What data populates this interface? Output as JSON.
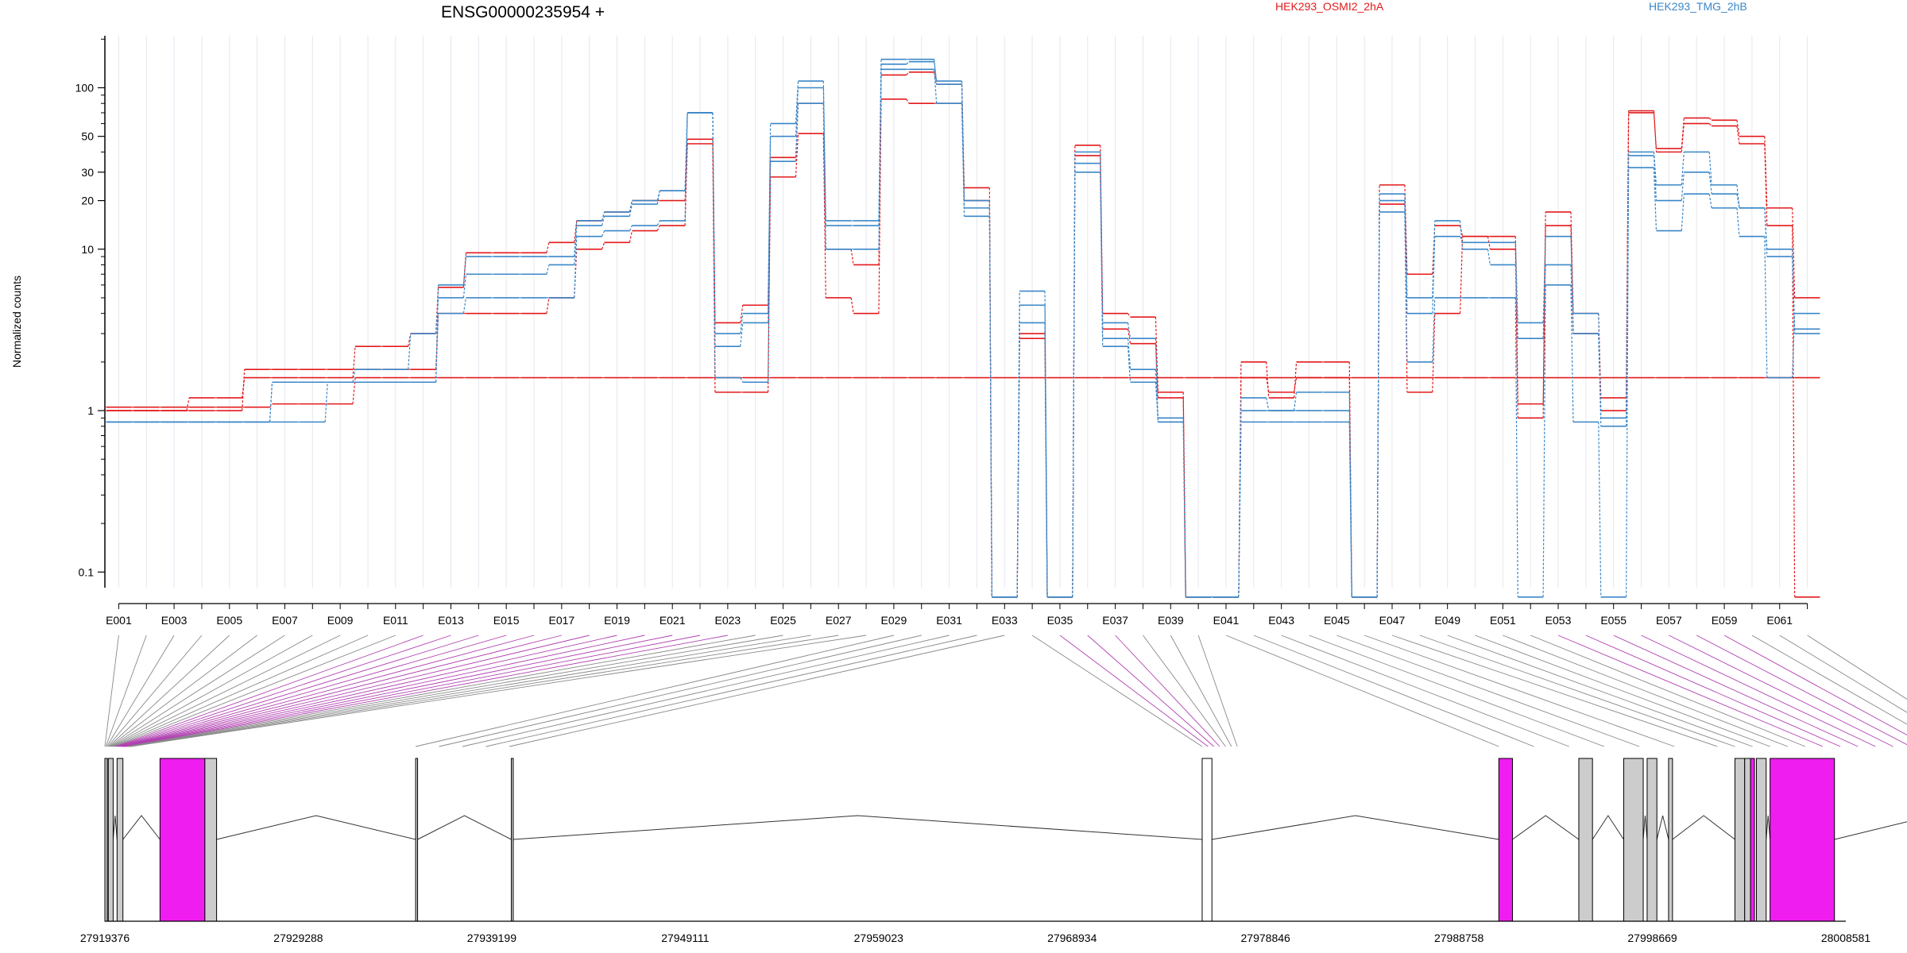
{
  "chart_data": {
    "type": "line",
    "title": "ENSG00000235954 +",
    "ylabel": "Normalized counts",
    "y_scale": "log",
    "ylim": [
      0.08,
      210
    ],
    "y_ticks": [
      0.1,
      1,
      10,
      20,
      30,
      50,
      100
    ],
    "y_tick_labels": [
      "0.1",
      "1",
      "10",
      "20",
      "30",
      "50",
      "100"
    ],
    "grid": "vertical, light",
    "legend_placement": "top-right",
    "exon_count": 62,
    "exon_labels": [
      "E001",
      "E003",
      "E005",
      "E007",
      "E009",
      "E011",
      "E013",
      "E015",
      "E017",
      "E019",
      "E021",
      "E023",
      "E025",
      "E027",
      "E029",
      "E031",
      "E033",
      "E035",
      "E037",
      "E039",
      "E041",
      "E043",
      "E045",
      "E047",
      "E049",
      "E051",
      "E053",
      "E055",
      "E057",
      "E059",
      "E061"
    ],
    "genomic_coords": [
      "27919376",
      "27929288",
      "27939199",
      "27949111",
      "27959023",
      "27968934",
      "27978846",
      "27988758",
      "27998669",
      "28008581"
    ],
    "colors": {
      "osmi": "#e31a1c",
      "tmg": "#3a87c8",
      "highlight": "#f01df0",
      "exon_gray": "#cccccc",
      "connector": "#888888"
    },
    "series": [
      {
        "name": "HEK293_OSMI2_2hA",
        "color": "#e31a1c",
        "values": [
          1.05,
          1.05,
          1.05,
          1.05,
          1.05,
          1.05,
          1.1,
          1.1,
          1.1,
          1.6,
          1.6,
          1.6,
          1.6,
          1.6,
          1.6,
          1.6,
          1.6,
          1.6,
          1.6,
          1.6,
          1.6,
          1.6,
          1.6,
          1.6,
          1.6,
          1.6,
          1.6,
          1.6,
          1.6,
          1.6,
          1.6,
          1.6,
          1.6,
          1.6,
          1.6,
          1.6,
          1.6,
          1.6,
          1.6,
          1.6,
          1.6,
          1.6,
          1.6,
          1.6,
          1.6,
          1.6,
          1.6,
          1.6,
          1.6,
          1.6,
          1.6,
          1.6,
          1.6,
          1.6,
          1.6,
          1.6,
          1.6,
          1.6,
          1.6,
          1.6,
          1.6,
          1.6
        ]
      },
      {
        "name": "HEK293_OSMI2_2hA",
        "color": "#e31a1c",
        "values": [
          1.0,
          1.0,
          1.0,
          1.2,
          1.2,
          1.6,
          1.6,
          1.6,
          1.6,
          2.5,
          2.5,
          3.0,
          5.8,
          9.5,
          9.5,
          9.5,
          11.0,
          15.0,
          17.0,
          20.0,
          20.0,
          48,
          3.5,
          4.5,
          37,
          80,
          10,
          8.0,
          120,
          125,
          105,
          24,
          0.07,
          3.0,
          0.07,
          44,
          4.0,
          3.8,
          1.3,
          0.07,
          0.07,
          2.0,
          1.2,
          2.0,
          2.0,
          0.07,
          25,
          7.0,
          14,
          12,
          12,
          1.1,
          17,
          4.0,
          1.2,
          70,
          42,
          65,
          63,
          50,
          18,
          5.0
        ]
      },
      {
        "name": "HEK293_OSMI2_2hA",
        "color": "#e31a1c",
        "values": [
          1.0,
          1.0,
          1.0,
          1.0,
          1.0,
          1.8,
          1.8,
          1.8,
          1.8,
          1.8,
          1.8,
          1.8,
          4.0,
          4.0,
          4.0,
          4.0,
          5.0,
          10,
          11,
          13,
          14,
          45,
          1.3,
          1.3,
          28,
          52,
          5.0,
          4.0,
          85,
          80,
          80,
          20,
          0.07,
          2.8,
          0.07,
          38,
          3.2,
          2.6,
          1.2,
          0.07,
          0.07,
          1.6,
          1.3,
          1.6,
          1.6,
          0.07,
          19,
          1.3,
          4.0,
          12,
          10,
          0.9,
          14,
          3.0,
          1.0,
          72,
          40,
          60,
          58,
          45,
          14,
          0.07
        ]
      },
      {
        "name": "HEK293_TMG_2hB",
        "color": "#3a87c8",
        "values": [
          0.85,
          0.85,
          0.85,
          0.85,
          0.85,
          0.85,
          1.5,
          1.5,
          1.5,
          1.5,
          1.5,
          1.5,
          6.0,
          9.0,
          9.0,
          9.0,
          9.0,
          15,
          17,
          20,
          23,
          70,
          2.5,
          3.5,
          50,
          100,
          14,
          14,
          140,
          145,
          110,
          20,
          0.07,
          5.5,
          0.07,
          30,
          2.5,
          1.5,
          0.9,
          0.07,
          0.07,
          1.2,
          1.0,
          1.3,
          1.3,
          0.07,
          20,
          4.0,
          12,
          11,
          11,
          3.5,
          12,
          4.0,
          0.9,
          38,
          20,
          30,
          22,
          18,
          10,
          3.0
        ]
      },
      {
        "name": "HEK293_TMG_2hB",
        "color": "#3a87c8",
        "values": [
          0.85,
          0.85,
          0.85,
          0.85,
          0.85,
          0.85,
          0.85,
          0.85,
          1.5,
          1.8,
          1.8,
          3.0,
          5.0,
          7.0,
          7.0,
          7.0,
          8.0,
          14,
          16,
          19,
          23,
          70,
          3.0,
          4.0,
          60,
          110,
          15,
          15,
          150,
          150,
          105,
          18,
          0.07,
          4.5,
          0.07,
          34,
          2.8,
          1.8,
          0.85,
          0.07,
          0.07,
          1.0,
          1.0,
          1.0,
          1.0,
          0.07,
          22,
          5.0,
          15,
          10,
          8.0,
          2.8,
          8.0,
          3.0,
          0.8,
          40,
          25,
          40,
          25,
          18,
          9.0,
          3.2
        ]
      },
      {
        "name": "HEK293_TMG_2hB",
        "color": "#3a87c8",
        "values": [
          0.85,
          0.85,
          0.85,
          0.85,
          0.85,
          0.85,
          1.5,
          1.5,
          1.5,
          1.5,
          1.5,
          1.5,
          4.0,
          5.0,
          5.0,
          5.0,
          5.0,
          12,
          13,
          14,
          15,
          70,
          1.6,
          1.5,
          35,
          80,
          10,
          10,
          130,
          130,
          80,
          16,
          0.07,
          3.5,
          0.07,
          40,
          3.5,
          2.8,
          0.85,
          0.07,
          0.07,
          0.85,
          0.85,
          0.85,
          0.85,
          0.07,
          17,
          2.0,
          5.0,
          5.0,
          5.0,
          0.07,
          6.0,
          0.85,
          0.07,
          32,
          13,
          22,
          18,
          12,
          1.6,
          4.0
        ]
      }
    ],
    "legend": [
      {
        "label": "HEK293_OSMI2_2hA",
        "color": "#e31a1c"
      },
      {
        "label": "HEK293_TMG_2hB",
        "color": "#3a87c8"
      }
    ],
    "gene_model": {
      "exons": [
        {
          "start": 27919376,
          "end": 27919500,
          "fill": "#cccccc"
        },
        {
          "start": 27919550,
          "end": 27919800,
          "fill": "#cccccc"
        },
        {
          "start": 27920000,
          "end": 27920300,
          "fill": "#cccccc"
        },
        {
          "start": 27922200,
          "end": 27924500,
          "fill": "#f01df0"
        },
        {
          "start": 27924500,
          "end": 27925100,
          "fill": "#cccccc"
        },
        {
          "start": 27935300,
          "end": 27935400,
          "fill": "#cccccc"
        },
        {
          "start": 27940200,
          "end": 27940300,
          "fill": "#cccccc"
        },
        {
          "start": 27975600,
          "end": 27976100,
          "fill": "#ffffff"
        },
        {
          "start": 27990800,
          "end": 27991500,
          "fill": "#f01df0"
        },
        {
          "start": 27994900,
          "end": 27995600,
          "fill": "#cccccc"
        },
        {
          "start": 27997200,
          "end": 27998200,
          "fill": "#cccccc"
        },
        {
          "start": 27998400,
          "end": 27998900,
          "fill": "#cccccc"
        },
        {
          "start": 27999500,
          "end": 27999700,
          "fill": "#cccccc"
        },
        {
          "start": 28002900,
          "end": 28003400,
          "fill": "#cccccc"
        },
        {
          "start": 28003400,
          "end": 28003700,
          "fill": "#cccccc"
        },
        {
          "start": 28003700,
          "end": 28003900,
          "fill": "#f01df0"
        },
        {
          "start": 28004000,
          "end": 28004500,
          "fill": "#cccccc"
        },
        {
          "start": 28004700,
          "end": 28008000,
          "fill": "#f01df0"
        },
        {
          "start": 28018000,
          "end": 28020000,
          "fill": "#cccccc"
        }
      ]
    }
  },
  "ui": {
    "title": "ENSG00000235954 +",
    "ylabel": "Normalized counts",
    "legend1": "HEK293_OSMI2_2hA",
    "legend2": "HEK293_TMG_2hB"
  }
}
